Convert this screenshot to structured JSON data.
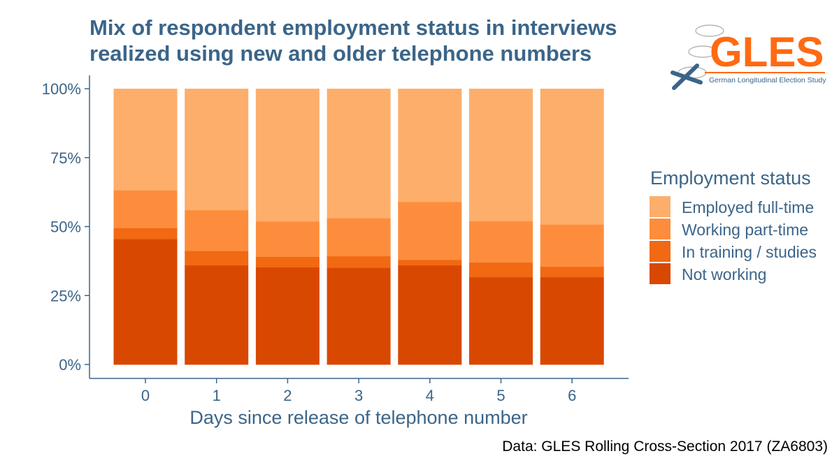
{
  "chart_data": {
    "type": "bar",
    "stacked": true,
    "title": "Mix of respondent employment status in interviews",
    "title_line2": "realized using new and older telephone numbers",
    "xlabel": "Days since release of telephone number",
    "ylabel": "",
    "categories": [
      "0",
      "1",
      "2",
      "3",
      "4",
      "5",
      "6"
    ],
    "ylim": [
      0,
      1
    ],
    "yticks": [
      {
        "value": 0,
        "label": "0%"
      },
      {
        "value": 0.25,
        "label": "25%"
      },
      {
        "value": 0.5,
        "label": "50%"
      },
      {
        "value": 0.75,
        "label": "75%"
      },
      {
        "value": 1,
        "label": "100%"
      }
    ],
    "grid": false,
    "legend_title": "Employment status",
    "legend_position": "right",
    "series": [
      {
        "name": "Not working",
        "color": "#d94801",
        "values": [
          0.455,
          0.36,
          0.353,
          0.351,
          0.36,
          0.317,
          0.317
        ]
      },
      {
        "name": "In training / studies",
        "color": "#f16913",
        "values": [
          0.04,
          0.052,
          0.038,
          0.042,
          0.02,
          0.053,
          0.038
        ]
      },
      {
        "name": "Working part-time",
        "color": "#fd8d3c",
        "values": [
          0.137,
          0.148,
          0.128,
          0.138,
          0.21,
          0.15,
          0.153
        ]
      },
      {
        "name": "Employed full-time",
        "color": "#fdae6b",
        "values": [
          0.368,
          0.44,
          0.481,
          0.469,
          0.41,
          0.48,
          0.492
        ]
      }
    ],
    "legend_order": [
      "Employed full-time",
      "Working part-time",
      "In training / studies",
      "Not working"
    ],
    "caption": "Data: GLES Rolling Cross-Section 2017 (ZA6803)"
  },
  "logo": {
    "text": "GLES",
    "subtitle": "German Longitudinal Election Study",
    "color": "#ff6a13",
    "accent": "#3b6589"
  },
  "colors": {
    "text": "#3b6589",
    "axis": "#3b6589"
  }
}
